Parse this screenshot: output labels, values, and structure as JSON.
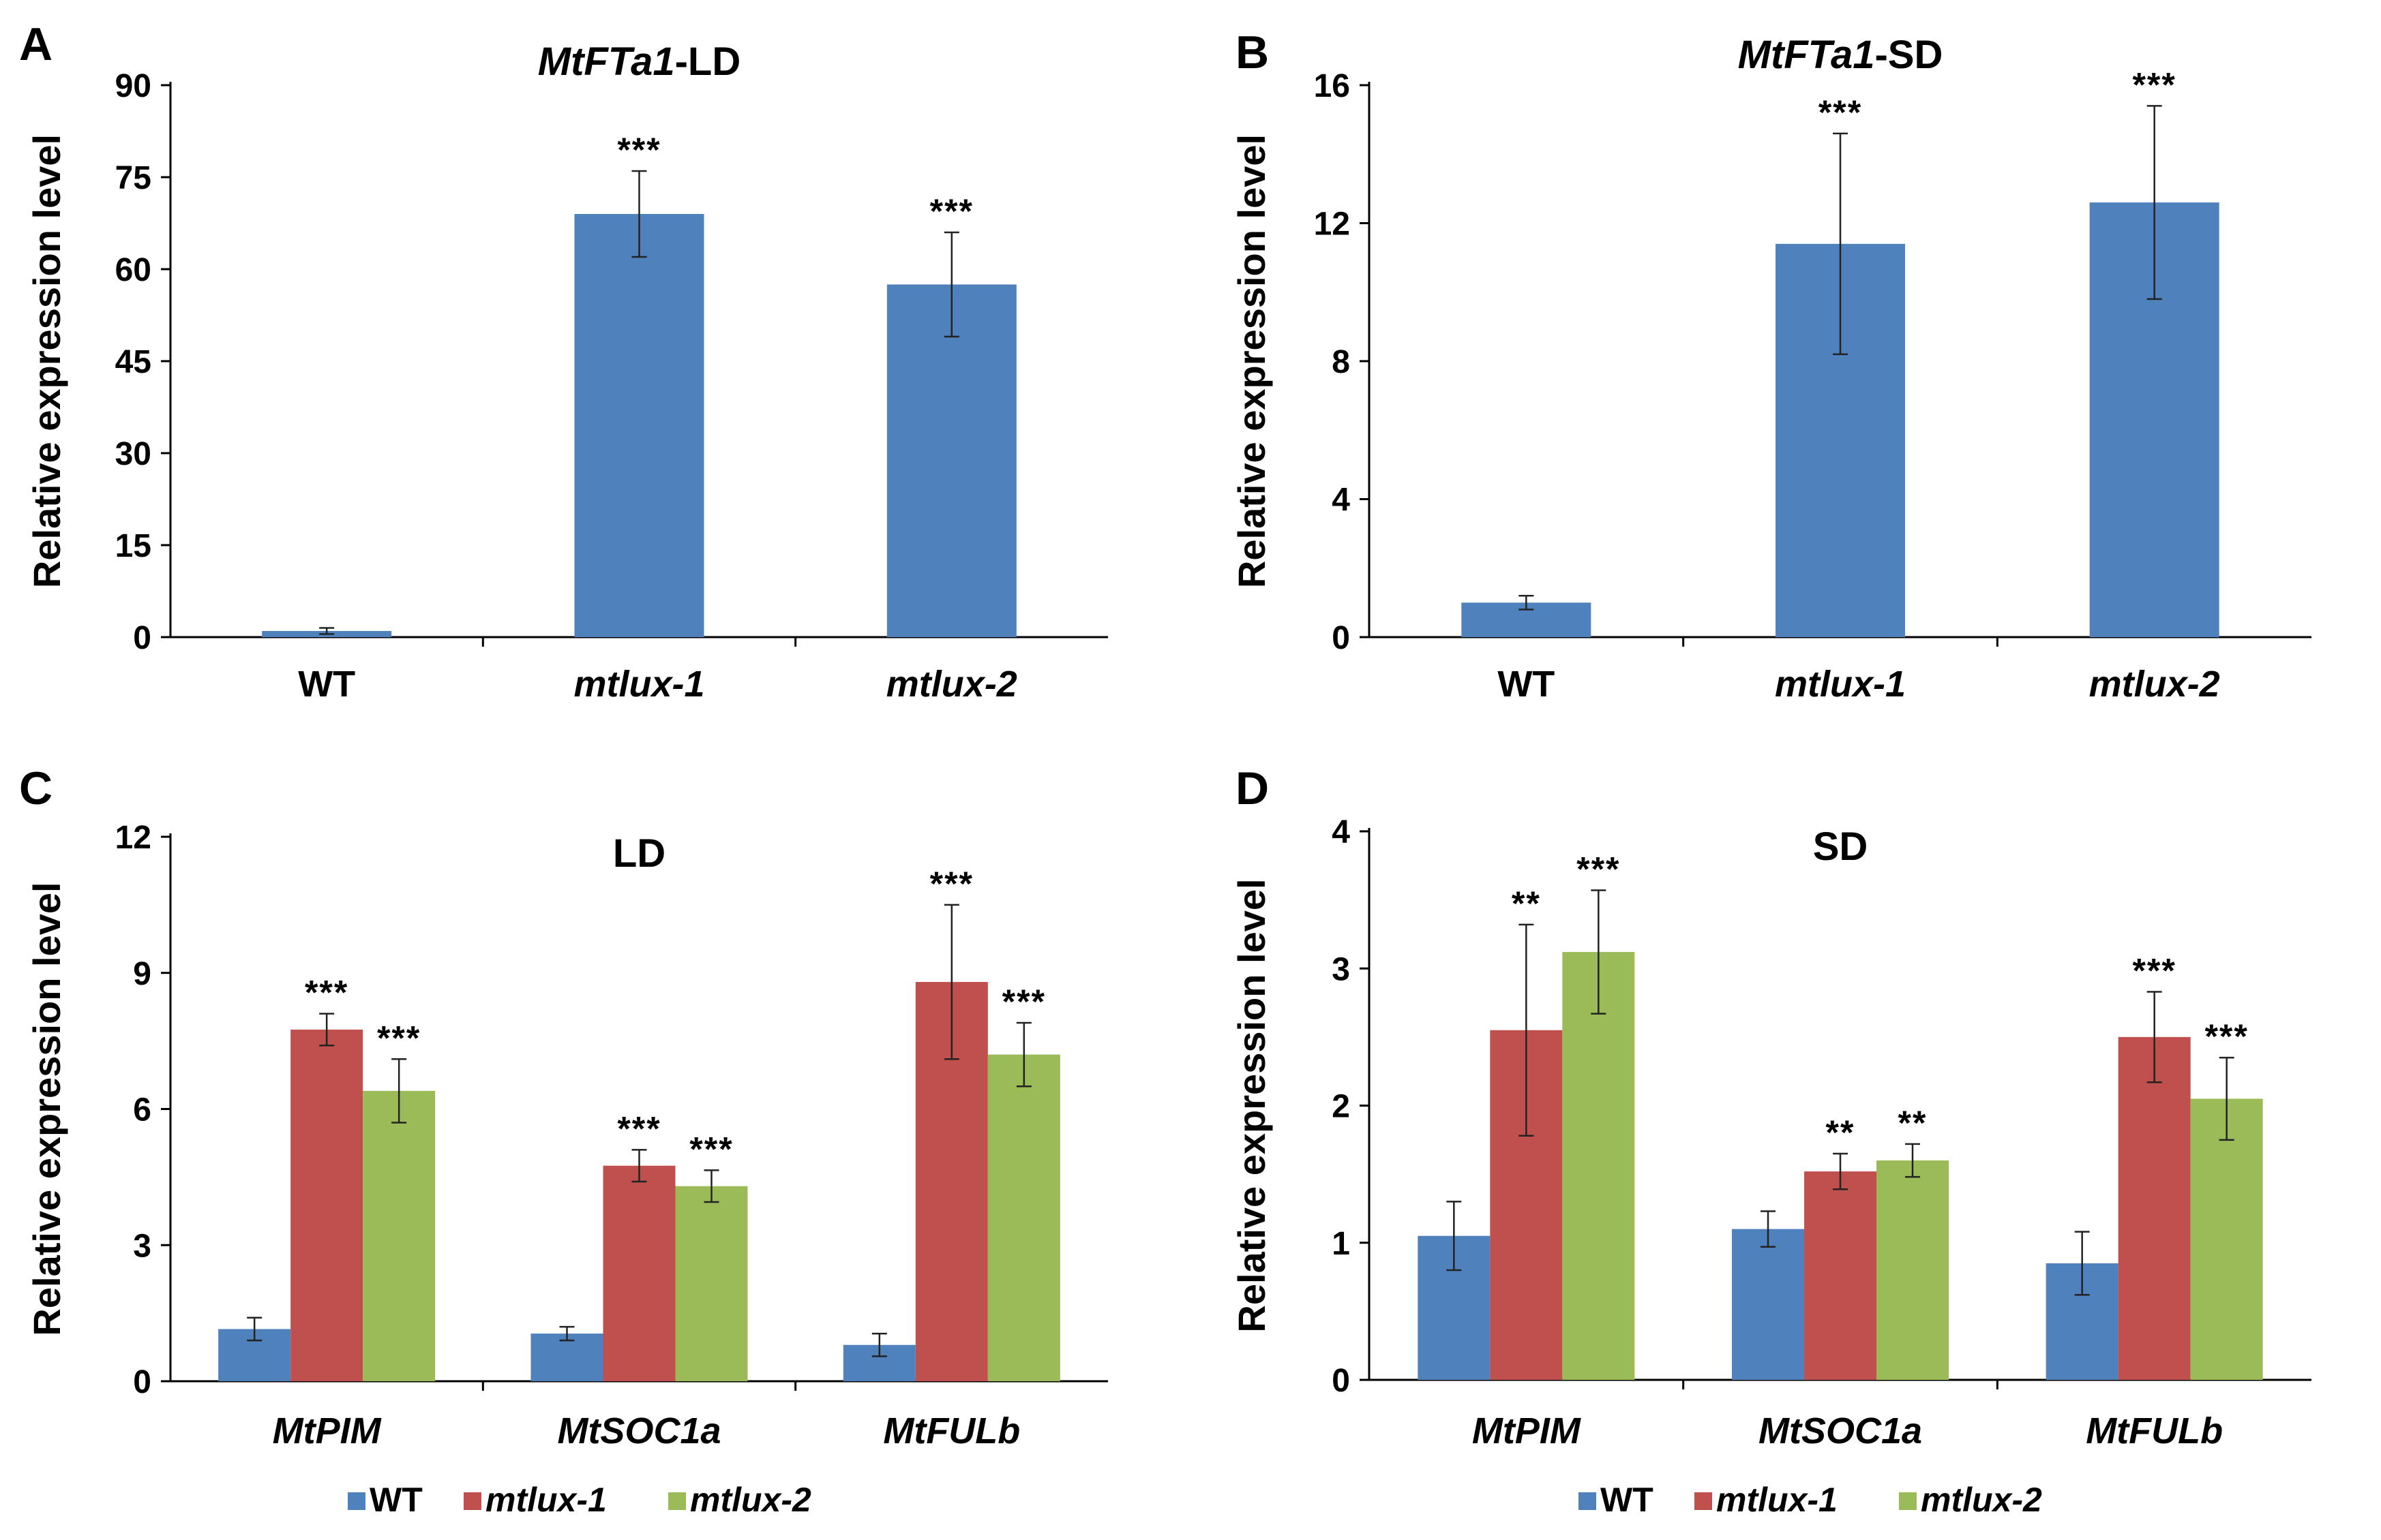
{
  "figure": {
    "chart_data": [
      {
        "panel": "A",
        "type": "bar",
        "title_italic": "MtFTa1",
        "title_rest": "-LD",
        "ylabel": "Relative expression level",
        "ylim": [
          0,
          90
        ],
        "yticks": [
          "0",
          "15",
          "30",
          "45",
          "60",
          "75",
          "90"
        ],
        "categories": [
          "WT",
          "mtlux-1",
          "mtlux-2"
        ],
        "category_italic": [
          false,
          true,
          true
        ],
        "series": [
          {
            "values": [
              1.0,
              69.0,
              57.5
            ],
            "errors": [
              0.5,
              7.0,
              8.5
            ],
            "sig": [
              "",
              "***",
              "***"
            ],
            "color": "#4F81BD"
          }
        ]
      },
      {
        "panel": "B",
        "type": "bar",
        "title_italic": "MtFTa1",
        "title_rest": "-SD",
        "ylabel": "Relative expression level",
        "ylim": [
          0,
          16
        ],
        "yticks": [
          "0",
          "4",
          "8",
          "12",
          "16"
        ],
        "categories": [
          "WT",
          "mtlux-1",
          "mtlux-2"
        ],
        "category_italic": [
          false,
          true,
          true
        ],
        "series": [
          {
            "values": [
              1.0,
              11.4,
              12.6
            ],
            "errors": [
              0.2,
              3.2,
              2.8
            ],
            "sig": [
              "",
              "***",
              "***"
            ],
            "color": "#4F81BD"
          }
        ]
      },
      {
        "panel": "C",
        "type": "bar",
        "title_italic": "",
        "title_rest": "LD",
        "ylabel": "Relative expression level",
        "ylim": [
          0,
          12
        ],
        "yticks": [
          "0",
          "3",
          "6",
          "9",
          "12"
        ],
        "categories": [
          "MtPIM",
          "MtSOC1a",
          "MtFULb"
        ],
        "category_italic": [
          true,
          true,
          true
        ],
        "series": [
          {
            "name": "WT",
            "values": [
              1.15,
              1.05,
              0.8
            ],
            "errors": [
              0.25,
              0.15,
              0.25
            ],
            "sig": [
              "",
              "",
              ""
            ],
            "color": "#4F81BD"
          },
          {
            "name": "mtlux-1",
            "values": [
              7.75,
              4.75,
              8.8
            ],
            "errors": [
              0.35,
              0.35,
              1.7
            ],
            "sig": [
              "***",
              "***",
              "***"
            ],
            "color": "#C0504D"
          },
          {
            "name": "mtlux-2",
            "values": [
              6.4,
              4.3,
              7.2
            ],
            "errors": [
              0.7,
              0.35,
              0.7
            ],
            "sig": [
              "***",
              "***",
              "***"
            ],
            "color": "#9BBB59"
          }
        ],
        "legend": [
          {
            "label": "WT",
            "italic": false
          },
          {
            "label": "mtlux-1",
            "italic": true
          },
          {
            "label": "mtlux-2",
            "italic": true
          }
        ],
        "legend_position": "bottom"
      },
      {
        "panel": "D",
        "type": "bar",
        "title_italic": "",
        "title_rest": "SD",
        "ylabel": "Relative expression level",
        "ylim": [
          0,
          4
        ],
        "yticks": [
          "0",
          "1",
          "2",
          "3",
          "4"
        ],
        "categories": [
          "MtPIM",
          "MtSOC1a",
          "MtFULb"
        ],
        "category_italic": [
          true,
          true,
          true
        ],
        "series": [
          {
            "name": "WT",
            "values": [
              1.05,
              1.1,
              0.85
            ],
            "errors": [
              0.25,
              0.13,
              0.23
            ],
            "sig": [
              "",
              "",
              ""
            ],
            "color": "#4F81BD"
          },
          {
            "name": "mtlux-1",
            "values": [
              2.55,
              1.52,
              2.5
            ],
            "errors": [
              0.77,
              0.13,
              0.33
            ],
            "sig": [
              "**",
              "**",
              "***"
            ],
            "color": "#C0504D"
          },
          {
            "name": "mtlux-2",
            "values": [
              3.12,
              1.6,
              2.05
            ],
            "errors": [
              0.45,
              0.12,
              0.3
            ],
            "sig": [
              "***",
              "**",
              "***"
            ],
            "color": "#9BBB59"
          }
        ],
        "legend": [
          {
            "label": "WT",
            "italic": false
          },
          {
            "label": "mtlux-1",
            "italic": true
          },
          {
            "label": "mtlux-2",
            "italic": true
          }
        ],
        "legend_position": "bottom"
      }
    ]
  }
}
